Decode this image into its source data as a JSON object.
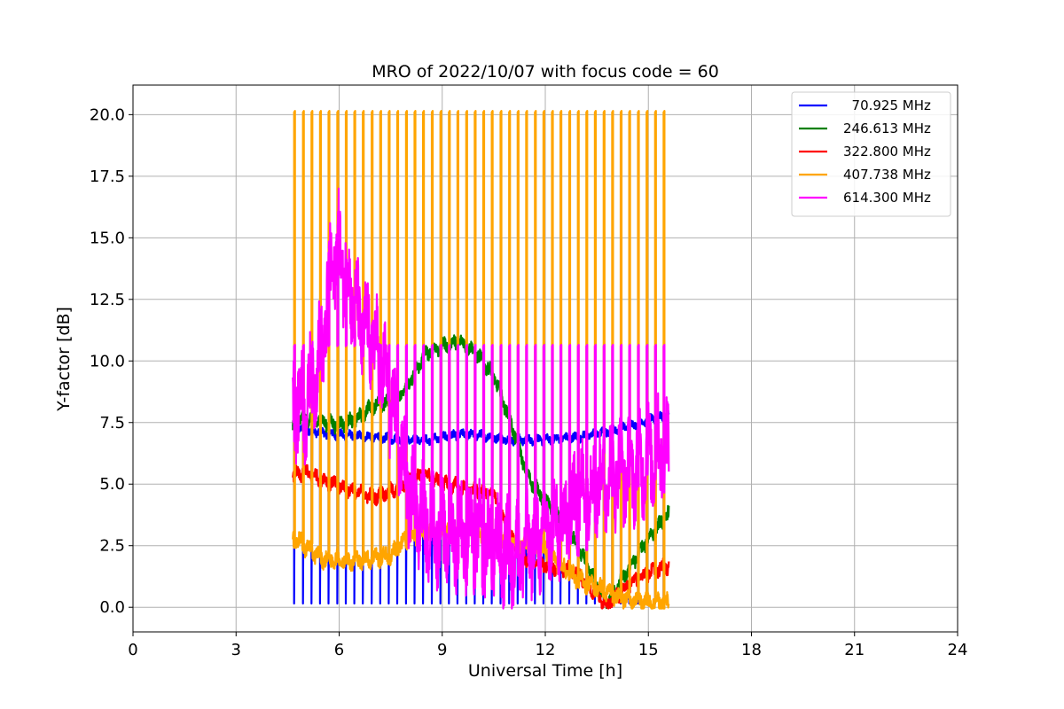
{
  "chart_data": {
    "type": "line",
    "title": "MRO of 2022/10/07 with focus code = 60",
    "xlabel": "Universal Time [h]",
    "ylabel": "Y-factor [dB]",
    "xlim": [
      0,
      24
    ],
    "ylim": [
      -1.0,
      21.2
    ],
    "xticks": [
      0,
      3,
      6,
      9,
      12,
      15,
      18,
      21,
      24
    ],
    "xtick_labels": [
      "0",
      "3",
      "6",
      "9",
      "12",
      "15",
      "18",
      "21",
      "24"
    ],
    "yticks": [
      0.0,
      2.5,
      5.0,
      7.5,
      10.0,
      12.5,
      15.0,
      17.5,
      20.0
    ],
    "ytick_labels": [
      "0.0",
      "2.5",
      "5.0",
      "7.5",
      "10.0",
      "12.5",
      "15.0",
      "17.5",
      "20.0"
    ],
    "grid": true,
    "legend_position": "top-right",
    "calibration_pulses": {
      "start_h": 4.65,
      "end_h": 15.6,
      "period_h": 0.25
    },
    "series": [
      {
        "name": "70.925 MHz",
        "legend_label": "  70.925 MHz",
        "color": "#0000ff",
        "noise_db": 0.15,
        "pulse_bottom_db": 0.15,
        "x": [
          4.65,
          5.0,
          6.0,
          7.0,
          8.0,
          8.5,
          9.0,
          9.5,
          10.0,
          11.0,
          12.0,
          13.0,
          14.0,
          15.0,
          15.6
        ],
        "y": [
          7.3,
          7.2,
          7.0,
          6.9,
          6.8,
          6.8,
          6.9,
          7.0,
          7.0,
          6.8,
          6.8,
          6.9,
          7.2,
          7.6,
          7.8
        ]
      },
      {
        "name": "246.613 MHz",
        "legend_label": "246.613 MHz",
        "color": "#008000",
        "noise_db": 0.25,
        "x": [
          4.65,
          5.0,
          6.0,
          6.5,
          7.0,
          7.5,
          8.0,
          8.5,
          9.0,
          9.5,
          10.0,
          10.5,
          11.0,
          11.5,
          12.0,
          12.5,
          13.0,
          13.5,
          13.8,
          14.0,
          14.5,
          15.0,
          15.6
        ],
        "y": [
          7.3,
          7.7,
          7.4,
          7.6,
          8.2,
          8.3,
          9.0,
          10.3,
          10.6,
          10.8,
          10.3,
          9.4,
          7.5,
          5.3,
          4.3,
          3.5,
          2.3,
          0.9,
          0.2,
          0.6,
          1.7,
          2.8,
          3.8
        ]
      },
      {
        "name": "322.800 MHz",
        "legend_label": "322.800 MHz",
        "color": "#ff0000",
        "noise_db": 0.25,
        "x": [
          4.65,
          5.0,
          6.0,
          7.0,
          7.5,
          8.0,
          8.5,
          9.0,
          9.5,
          10.0,
          10.5,
          11.0,
          11.5,
          12.0,
          12.5,
          13.0,
          13.5,
          13.8,
          14.2,
          14.5,
          15.0,
          15.6
        ],
        "y": [
          5.3,
          5.5,
          4.9,
          4.5,
          4.7,
          5.1,
          5.4,
          5.0,
          4.9,
          4.7,
          4.6,
          2.8,
          1.9,
          1.7,
          1.6,
          1.3,
          0.5,
          0.1,
          0.6,
          1.0,
          1.4,
          1.7
        ]
      },
      {
        "name": "407.738 MHz",
        "legend_label": "407.738 MHz",
        "color": "#ffa500",
        "noise_db": 0.3,
        "pulse_top_db": 20.1,
        "x": [
          4.65,
          5.0,
          5.5,
          6.0,
          6.5,
          7.0,
          7.5,
          8.0,
          8.5,
          9.0,
          9.5,
          10.0,
          10.5,
          11.0,
          11.5,
          12.0,
          12.5,
          13.0,
          13.5,
          14.0,
          14.5,
          15.0,
          15.6
        ],
        "y": [
          2.8,
          2.5,
          2.0,
          1.9,
          1.9,
          2.0,
          2.1,
          2.8,
          3.0,
          3.2,
          3.1,
          3.0,
          2.9,
          2.7,
          2.5,
          2.3,
          1.6,
          1.1,
          0.8,
          0.5,
          0.3,
          0.2,
          0.2
        ]
      },
      {
        "name": "614.300 MHz",
        "legend_label": "614.300 MHz",
        "color": "#ff00ff",
        "noise_db": 1.6,
        "pulse_top_db": 10.6,
        "x": [
          4.65,
          5.0,
          5.5,
          5.8,
          6.0,
          6.3,
          6.6,
          7.0,
          7.4,
          7.7,
          8.0,
          8.5,
          9.0,
          9.5,
          10.0,
          10.5,
          11.0,
          11.5,
          12.0,
          12.5,
          13.0,
          13.5,
          14.0,
          14.5,
          15.0,
          15.6
        ],
        "y": [
          8.5,
          8.0,
          10.5,
          14.0,
          14.5,
          13.0,
          11.5,
          10.8,
          9.0,
          7.0,
          4.8,
          3.5,
          3.0,
          3.0,
          2.7,
          2.5,
          2.0,
          2.5,
          3.0,
          3.5,
          4.5,
          5.0,
          5.5,
          5.5,
          6.0,
          6.5
        ]
      }
    ]
  }
}
